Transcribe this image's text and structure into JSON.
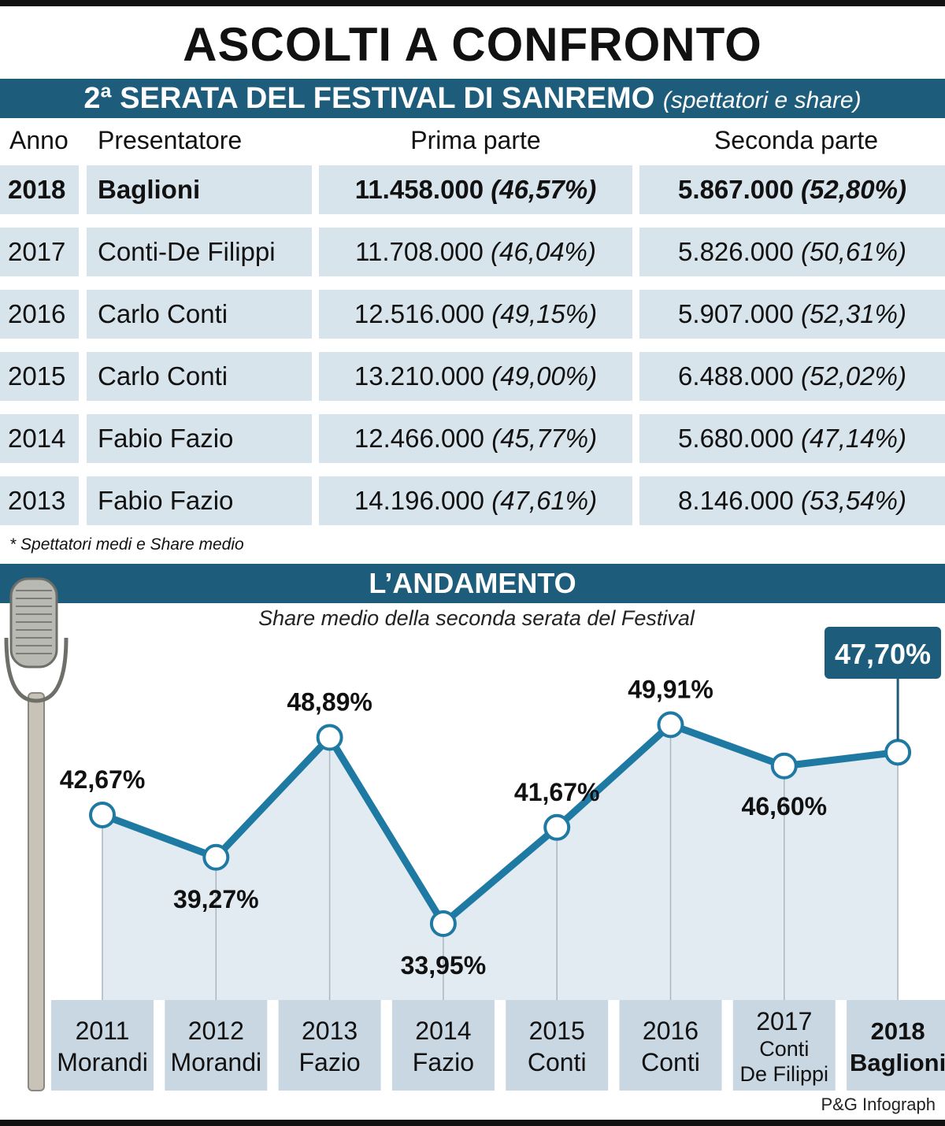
{
  "title": "ASCOLTI A CONFRONTO",
  "table": {
    "heading": "2ª SERATA DEL FESTIVAL DI SANREMO",
    "heading_note": "(spettatori e share)",
    "columns": [
      "Anno",
      "Presentatore",
      "Prima parte",
      "Seconda parte"
    ],
    "rows": [
      {
        "anno": "2018",
        "presentatore": "Baglioni",
        "prima": "11.458.000",
        "prima_share": "(46,57%)",
        "seconda": "5.867.000",
        "seconda_share": "(52,80%)"
      },
      {
        "anno": "2017",
        "presentatore": "Conti-De Filippi",
        "prima": "11.708.000",
        "prima_share": "(46,04%)",
        "seconda": "5.826.000",
        "seconda_share": "(50,61%)"
      },
      {
        "anno": "2016",
        "presentatore": "Carlo Conti",
        "prima": "12.516.000",
        "prima_share": "(49,15%)",
        "seconda": "5.907.000",
        "seconda_share": "(52,31%)"
      },
      {
        "anno": "2015",
        "presentatore": "Carlo Conti",
        "prima": "13.210.000",
        "prima_share": "(49,00%)",
        "seconda": "6.488.000",
        "seconda_share": "(52,02%)"
      },
      {
        "anno": "2014",
        "presentatore": "Fabio Fazio",
        "prima": "12.466.000",
        "prima_share": "(45,77%)",
        "seconda": "5.680.000",
        "seconda_share": "(47,14%)"
      },
      {
        "anno": "2013",
        "presentatore": "Fabio Fazio",
        "prima": "14.196.000",
        "prima_share": "(47,61%)",
        "seconda": "8.146.000",
        "seconda_share": "(53,54%)"
      }
    ],
    "footnote": "* Spettatori medi e Share medio"
  },
  "trend": {
    "heading": "L’ANDAMENTO",
    "subtitle": "Share medio della seconda serata del Festival"
  },
  "credit": "P&G Infograph",
  "colors": {
    "accent": "#1d5d7b",
    "line": "#1f7aa3",
    "area": "#e2ebf2",
    "cell_dark": "#d8e4ec",
    "cell_light": "#e9f0f5",
    "category_box": "#c9d7e2"
  },
  "chart_data": {
    "type": "line",
    "title": "Share medio della seconda serata del Festival",
    "x": [
      "2011",
      "2012",
      "2013",
      "2014",
      "2015",
      "2016",
      "2017",
      "2018"
    ],
    "category_lines": [
      [
        "2011",
        "Morandi"
      ],
      [
        "2012",
        "Morandi"
      ],
      [
        "2013",
        "Fazio"
      ],
      [
        "2014",
        "Fazio"
      ],
      [
        "2015",
        "Conti"
      ],
      [
        "2016",
        "Conti"
      ],
      [
        "2017",
        "Conti",
        "De Filippi"
      ],
      [
        "2018",
        "Baglioni"
      ]
    ],
    "series": [
      {
        "values": [
          42.67,
          39.27,
          48.89,
          33.95,
          41.67,
          49.91,
          46.6,
          47.7
        ]
      }
    ],
    "data_labels": [
      "42,67%",
      "39,27%",
      "48,89%",
      "33,95%",
      "41,67%",
      "49,91%",
      "46,60%",
      "47,70%"
    ],
    "highlight_index": 7,
    "grid": false,
    "legend": "none"
  }
}
